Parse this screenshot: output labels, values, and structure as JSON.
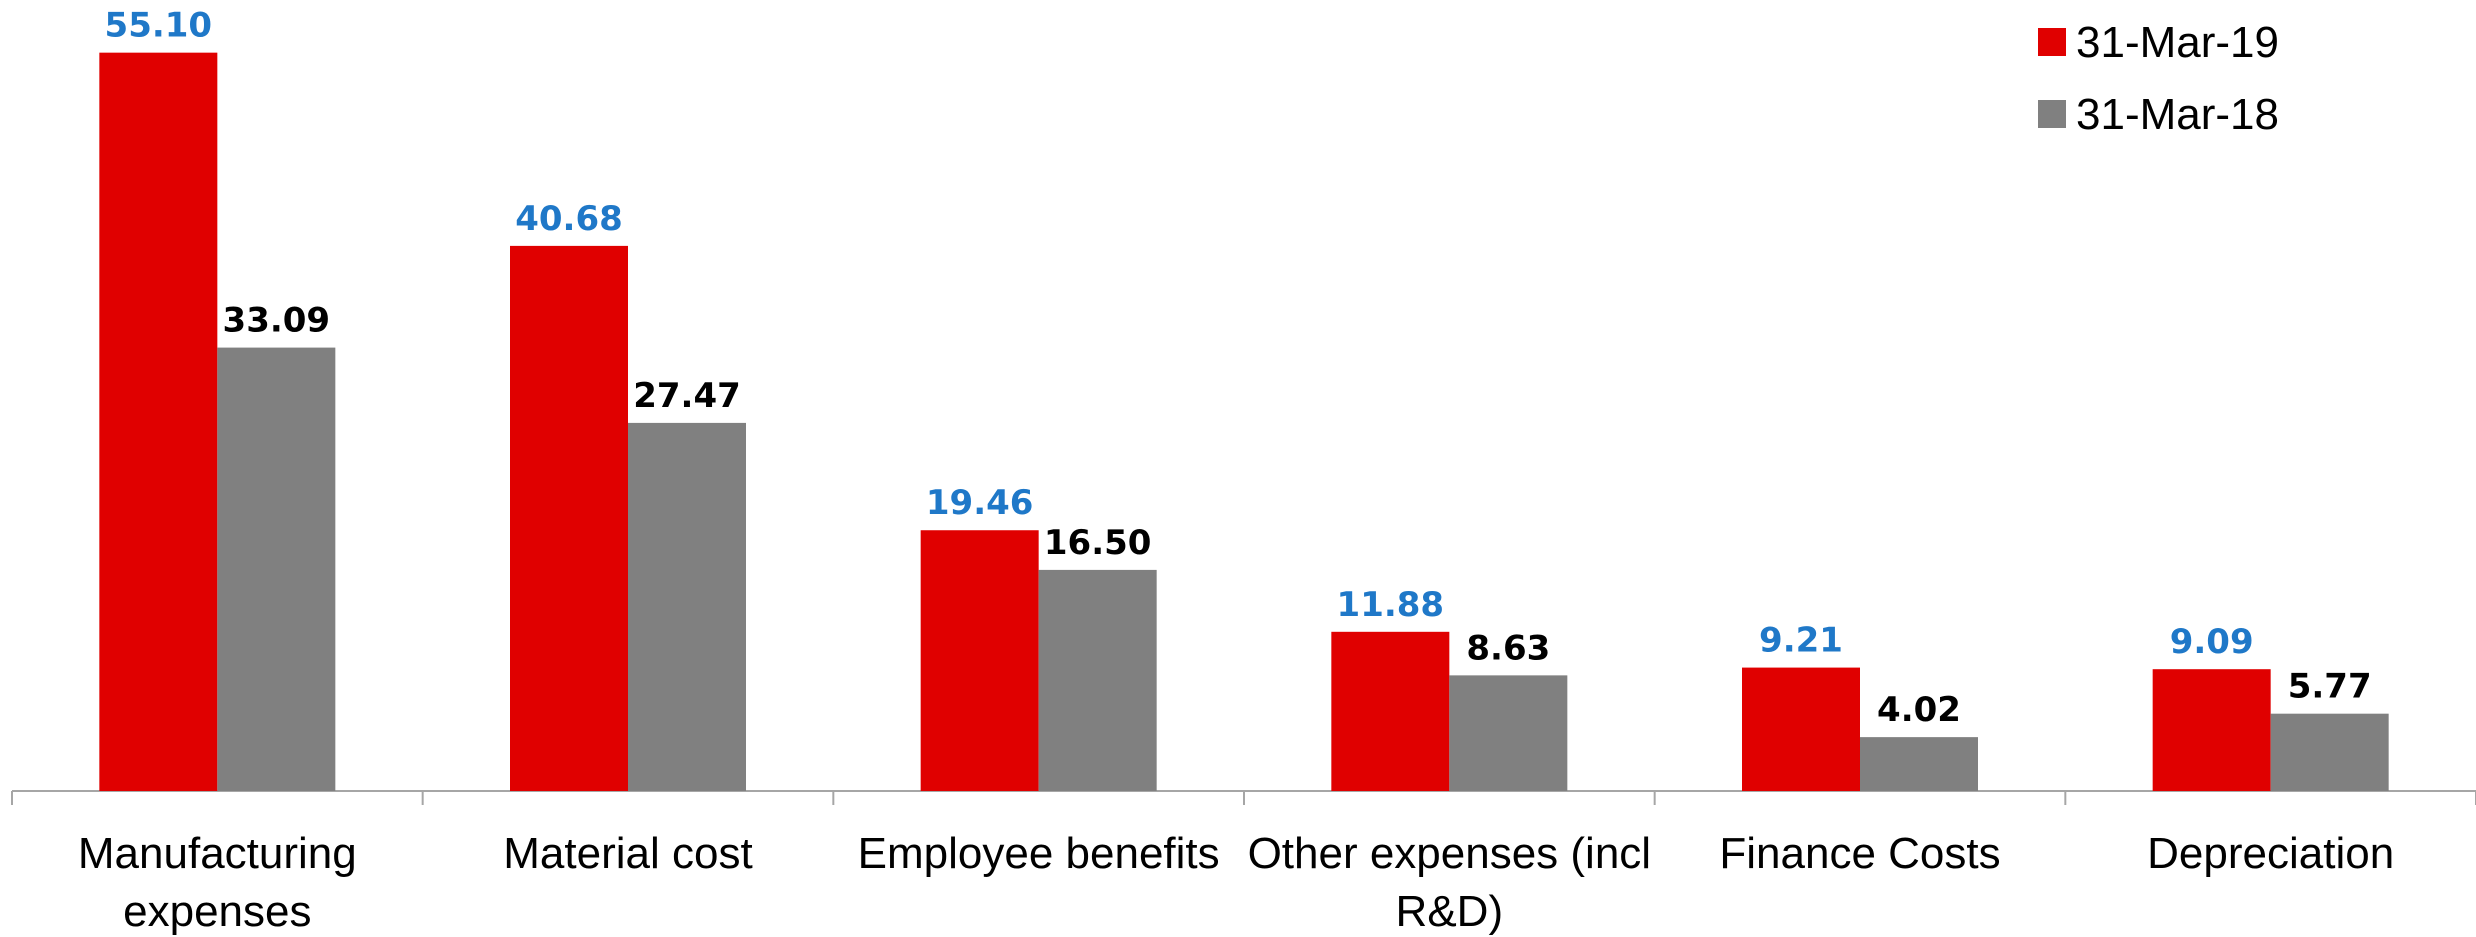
{
  "chart_data": {
    "type": "bar",
    "categories": [
      "Manufacturing expenses",
      "Material cost",
      "Employee benefits",
      "Other expenses (incl R&D)",
      "Finance Costs",
      "Depreciation"
    ],
    "category_lines": [
      [
        "Manufacturing",
        "expenses"
      ],
      [
        "Material cost"
      ],
      [
        "Employee benefits"
      ],
      [
        "Other expenses (incl",
        "R&D)"
      ],
      [
        "Finance Costs"
      ],
      [
        "Depreciation"
      ]
    ],
    "series": [
      {
        "name": "31-Mar-19",
        "values": [
          55.1,
          40.68,
          19.46,
          11.88,
          9.21,
          9.09
        ],
        "labels": [
          "55.10",
          "40.68",
          "19.46",
          "11.88",
          "9.21",
          "9.09"
        ],
        "color": "#e00000",
        "label_color": "#1f78c8"
      },
      {
        "name": "31-Mar-18",
        "values": [
          33.09,
          27.47,
          16.5,
          8.63,
          4.02,
          5.77
        ],
        "labels": [
          "33.09",
          "27.47",
          "16.50",
          "8.63",
          "4.02",
          "5.77"
        ],
        "color": "#808080",
        "label_color": "#000000"
      }
    ],
    "title": "",
    "xlabel": "",
    "ylabel": "",
    "ylim": [
      0,
      60
    ],
    "grid": false,
    "legend": "top-right",
    "axis_color": "#a6a6a6"
  }
}
